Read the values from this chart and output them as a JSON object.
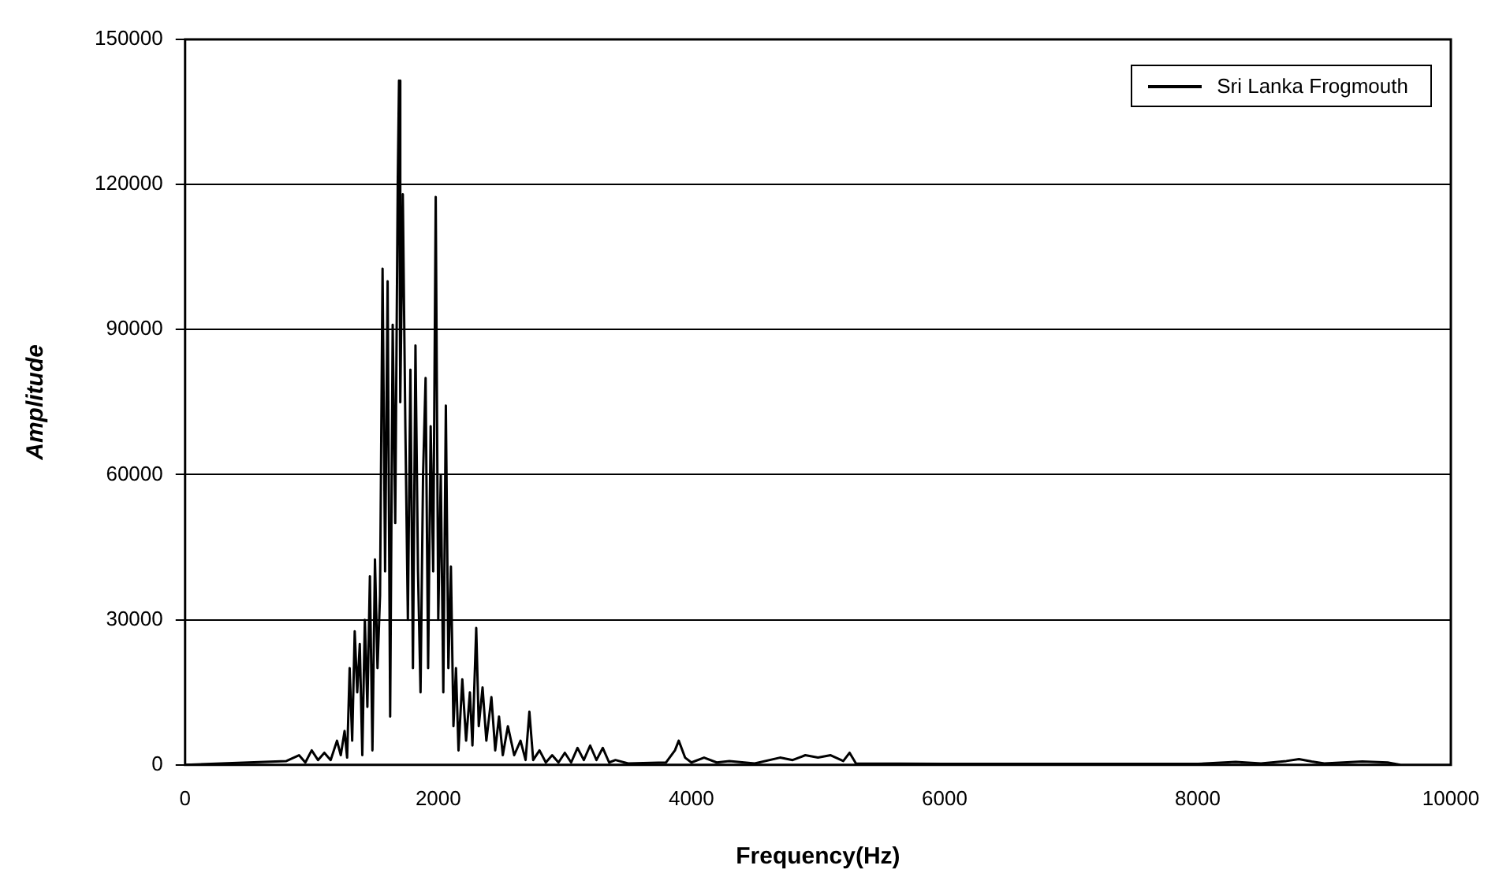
{
  "chart_data": {
    "type": "line",
    "xlabel": "Frequency(Hz)",
    "ylabel": "Amplitude",
    "xlim": [
      0,
      10000
    ],
    "xticks": [
      0,
      2000,
      4000,
      6000,
      8000,
      10000
    ],
    "ylim": [
      0,
      150000
    ],
    "yticks": [
      0,
      30000,
      60000,
      90000,
      120000,
      150000
    ],
    "grid": "y",
    "legend": "top right",
    "marker": "none",
    "line_style": "solid",
    "series": [
      {
        "name": "Sri Lanka Frogmouth",
        "color": "#000000",
        "x": [
          0,
          500,
          800,
          900,
          950,
          1000,
          1050,
          1100,
          1150,
          1200,
          1230,
          1260,
          1280,
          1300,
          1320,
          1340,
          1360,
          1380,
          1400,
          1420,
          1440,
          1460,
          1480,
          1500,
          1520,
          1540,
          1560,
          1580,
          1600,
          1620,
          1640,
          1660,
          1680,
          1690,
          1700,
          1720,
          1740,
          1760,
          1780,
          1800,
          1820,
          1840,
          1860,
          1880,
          1900,
          1920,
          1940,
          1960,
          1980,
          2000,
          2020,
          2040,
          2060,
          2080,
          2100,
          2120,
          2140,
          2160,
          2190,
          2220,
          2250,
          2270,
          2300,
          2320,
          2350,
          2380,
          2420,
          2450,
          2480,
          2510,
          2550,
          2600,
          2650,
          2690,
          2720,
          2750,
          2800,
          2850,
          2900,
          2950,
          3000,
          3050,
          3100,
          3150,
          3200,
          3250,
          3300,
          3350,
          3400,
          3500,
          3800,
          3870,
          3900,
          3950,
          4000,
          4100,
          4200,
          4300,
          4500,
          4700,
          4800,
          4900,
          5000,
          5100,
          5200,
          5250,
          5300,
          6000,
          8000,
          8300,
          8500,
          8700,
          8800,
          8900,
          9000,
          9300,
          9500,
          9600
        ],
        "values": [
          0,
          500,
          800,
          2000,
          500,
          3000,
          1000,
          2500,
          1000,
          5000,
          2000,
          7000,
          1500,
          20000,
          5000,
          27600,
          15000,
          25000,
          2000,
          30000,
          12000,
          39000,
          3000,
          42500,
          20000,
          35000,
          102600,
          40000,
          100000,
          10000,
          91000,
          50000,
          120600,
          141500,
          75000,
          118000,
          70000,
          30000,
          81700,
          20000,
          86700,
          40000,
          15000,
          60000,
          80000,
          20000,
          70000,
          40000,
          117400,
          30000,
          60000,
          15000,
          74300,
          20000,
          41000,
          8000,
          20000,
          3000,
          17700,
          5000,
          15000,
          4000,
          28300,
          8000,
          16000,
          5000,
          14000,
          3000,
          10000,
          2000,
          8000,
          2000,
          5000,
          1000,
          11000,
          1000,
          3000,
          500,
          2000,
          500,
          2500,
          500,
          3500,
          1000,
          4000,
          1000,
          3500,
          500,
          1000,
          300,
          500,
          3000,
          5000,
          1500,
          500,
          1500,
          500,
          800,
          300,
          1500,
          1000,
          2000,
          1500,
          2000,
          800,
          2500,
          300,
          200,
          200,
          600,
          300,
          800,
          1200,
          700,
          300,
          700,
          500,
          0
        ]
      }
    ]
  }
}
